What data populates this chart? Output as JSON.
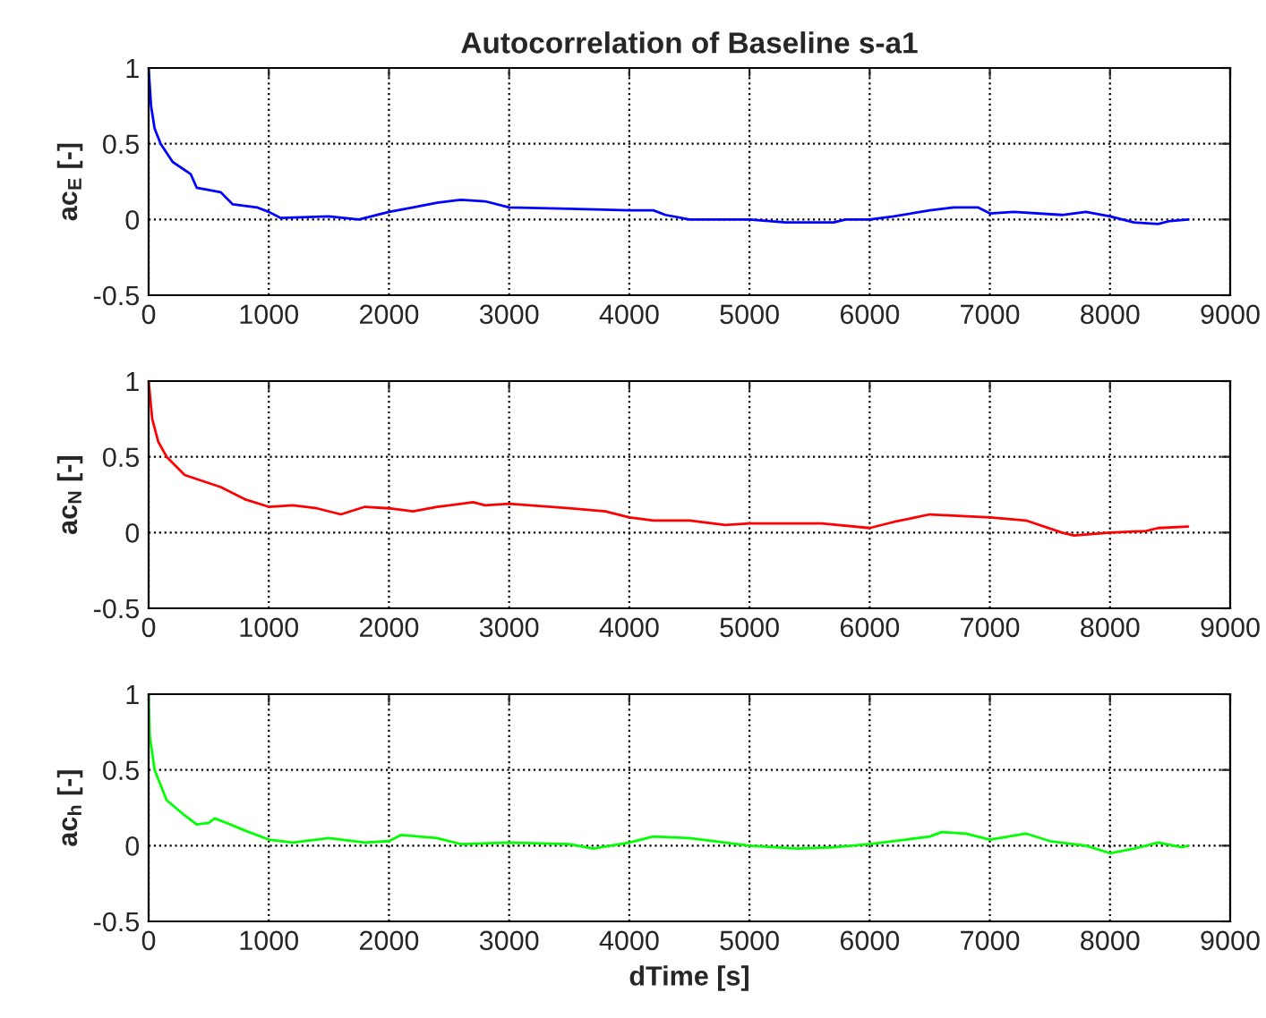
{
  "chart_data": [
    {
      "type": "line",
      "title": "Autocorrelation of Baseline s-a1",
      "ylabel": "ac$_{E}$ [-]",
      "xlim": [
        0,
        9000
      ],
      "xticks": [
        0,
        1000,
        2000,
        3000,
        4000,
        5000,
        6000,
        7000,
        8000,
        9000
      ],
      "ylim": [
        -0.5,
        1
      ],
      "yticks": [
        -0.5,
        0,
        0.5,
        1
      ],
      "grid": true,
      "line_style": "solid",
      "series": [
        {
          "color": "#0000ff",
          "x": [
            0,
            20,
            50,
            100,
            200,
            350,
            400,
            600,
            700,
            900,
            1000,
            1100,
            1500,
            1750,
            2000,
            2200,
            2400,
            2600,
            2800,
            3000,
            3500,
            4000,
            4200,
            4300,
            4500,
            5000,
            5300,
            5500,
            5700,
            5800,
            6000,
            6200,
            6500,
            6700,
            6900,
            7000,
            7200,
            7600,
            7800,
            8000,
            8200,
            8400,
            8500,
            8650
          ],
          "values": [
            1.0,
            0.75,
            0.6,
            0.5,
            0.38,
            0.3,
            0.21,
            0.18,
            0.1,
            0.08,
            0.05,
            0.01,
            0.02,
            0.0,
            0.05,
            0.08,
            0.11,
            0.13,
            0.12,
            0.08,
            0.07,
            0.06,
            0.06,
            0.03,
            0.0,
            0.0,
            -0.02,
            -0.02,
            -0.02,
            0.0,
            0.0,
            0.02,
            0.06,
            0.08,
            0.08,
            0.04,
            0.05,
            0.03,
            0.05,
            0.02,
            -0.02,
            -0.03,
            -0.01,
            0.0
          ]
        }
      ]
    },
    {
      "type": "line",
      "ylabel": "ac$_{N}$ [-]",
      "xlim": [
        0,
        9000
      ],
      "xticks": [
        0,
        1000,
        2000,
        3000,
        4000,
        5000,
        6000,
        7000,
        8000,
        9000
      ],
      "ylim": [
        -0.5,
        1
      ],
      "yticks": [
        -0.5,
        0,
        0.5,
        1
      ],
      "grid": true,
      "line_style": "solid",
      "series": [
        {
          "color": "#ff0000",
          "x": [
            0,
            30,
            80,
            150,
            300,
            600,
            800,
            1000,
            1200,
            1400,
            1600,
            1800,
            2000,
            2200,
            2400,
            2700,
            2800,
            3000,
            3500,
            3800,
            4000,
            4200,
            4500,
            4800,
            5000,
            5600,
            6000,
            6200,
            6500,
            7000,
            7300,
            7600,
            7700,
            8000,
            8300,
            8400,
            8650
          ],
          "values": [
            1.0,
            0.75,
            0.6,
            0.5,
            0.38,
            0.3,
            0.22,
            0.17,
            0.18,
            0.16,
            0.12,
            0.17,
            0.16,
            0.14,
            0.17,
            0.2,
            0.18,
            0.19,
            0.16,
            0.14,
            0.1,
            0.08,
            0.08,
            0.05,
            0.06,
            0.06,
            0.03,
            0.07,
            0.12,
            0.1,
            0.08,
            0.0,
            -0.02,
            0.0,
            0.01,
            0.03,
            0.04
          ]
        }
      ]
    },
    {
      "type": "line",
      "ylabel": "ac$_{h}$ [-]",
      "xlabel": "dTime [s]",
      "xlim": [
        0,
        9000
      ],
      "xticks": [
        0,
        1000,
        2000,
        3000,
        4000,
        5000,
        6000,
        7000,
        8000,
        9000
      ],
      "ylim": [
        -0.5,
        1
      ],
      "yticks": [
        -0.5,
        0,
        0.5,
        1
      ],
      "grid": true,
      "line_style": "solid",
      "series": [
        {
          "color": "#00ff00",
          "x": [
            0,
            10,
            50,
            150,
            300,
            400,
            500,
            550,
            650,
            800,
            1000,
            1200,
            1500,
            1800,
            2000,
            2100,
            2400,
            2600,
            3000,
            3500,
            3700,
            4000,
            4200,
            4500,
            5000,
            5400,
            5700,
            6000,
            6300,
            6500,
            6600,
            6800,
            7000,
            7300,
            7500,
            7800,
            8000,
            8200,
            8400,
            8600,
            8650
          ],
          "values": [
            1.0,
            0.72,
            0.5,
            0.3,
            0.2,
            0.14,
            0.15,
            0.18,
            0.15,
            0.1,
            0.04,
            0.02,
            0.05,
            0.02,
            0.03,
            0.07,
            0.05,
            0.01,
            0.02,
            0.01,
            -0.02,
            0.02,
            0.06,
            0.05,
            0.0,
            -0.02,
            -0.01,
            0.01,
            0.04,
            0.06,
            0.09,
            0.08,
            0.04,
            0.08,
            0.03,
            0.0,
            -0.05,
            -0.02,
            0.02,
            -0.01,
            0.0
          ]
        }
      ]
    }
  ]
}
